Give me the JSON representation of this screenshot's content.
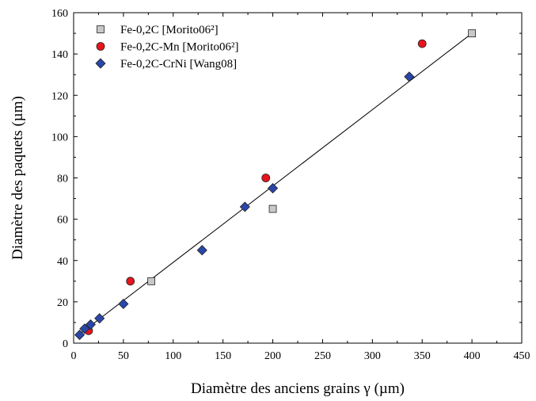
{
  "chart_data": {
    "type": "scatter",
    "xlabel": "Diamètre des anciens grains γ (µm)",
    "ylabel": "Diamètre des paquets (µm)",
    "xlim": [
      0,
      450
    ],
    "ylim": [
      0,
      160
    ],
    "xticks": [
      0,
      50,
      100,
      150,
      200,
      250,
      300,
      350,
      400,
      450
    ],
    "yticks": [
      0,
      20,
      40,
      60,
      80,
      100,
      120,
      140,
      160
    ],
    "x_tick_labels": [
      "0",
      "50",
      "100",
      "150",
      "200",
      "250",
      "300",
      "350",
      "400",
      "450"
    ],
    "y_tick_labels": [
      "0",
      "20",
      "40",
      "60",
      "80",
      "100",
      "120",
      "140",
      "160"
    ],
    "grid": false,
    "legend_position": "top-left",
    "series": [
      {
        "name": "Fe-0,2C [Morito06²]",
        "marker": "square",
        "color": "#c8c8c8",
        "points": [
          [
            78,
            30
          ],
          [
            200,
            65
          ],
          [
            400,
            150
          ]
        ]
      },
      {
        "name": "Fe-0,2C-Mn [Morito06²]",
        "marker": "circle",
        "color": "#e8141c",
        "points": [
          [
            15,
            6
          ],
          [
            57,
            30
          ],
          [
            193,
            80
          ],
          [
            350,
            145
          ]
        ]
      },
      {
        "name": "Fe-0,2C-CrNi [Wang08]",
        "marker": "diamond",
        "color": "#2a46a8",
        "points": [
          [
            6,
            4
          ],
          [
            11,
            7
          ],
          [
            17,
            9
          ],
          [
            26,
            12
          ],
          [
            50,
            19
          ],
          [
            129,
            45
          ],
          [
            172,
            66
          ],
          [
            200,
            75
          ],
          [
            337,
            129
          ]
        ]
      }
    ],
    "fit_line": {
      "points": [
        [
          5,
          4
        ],
        [
          400,
          150
        ]
      ]
    }
  }
}
